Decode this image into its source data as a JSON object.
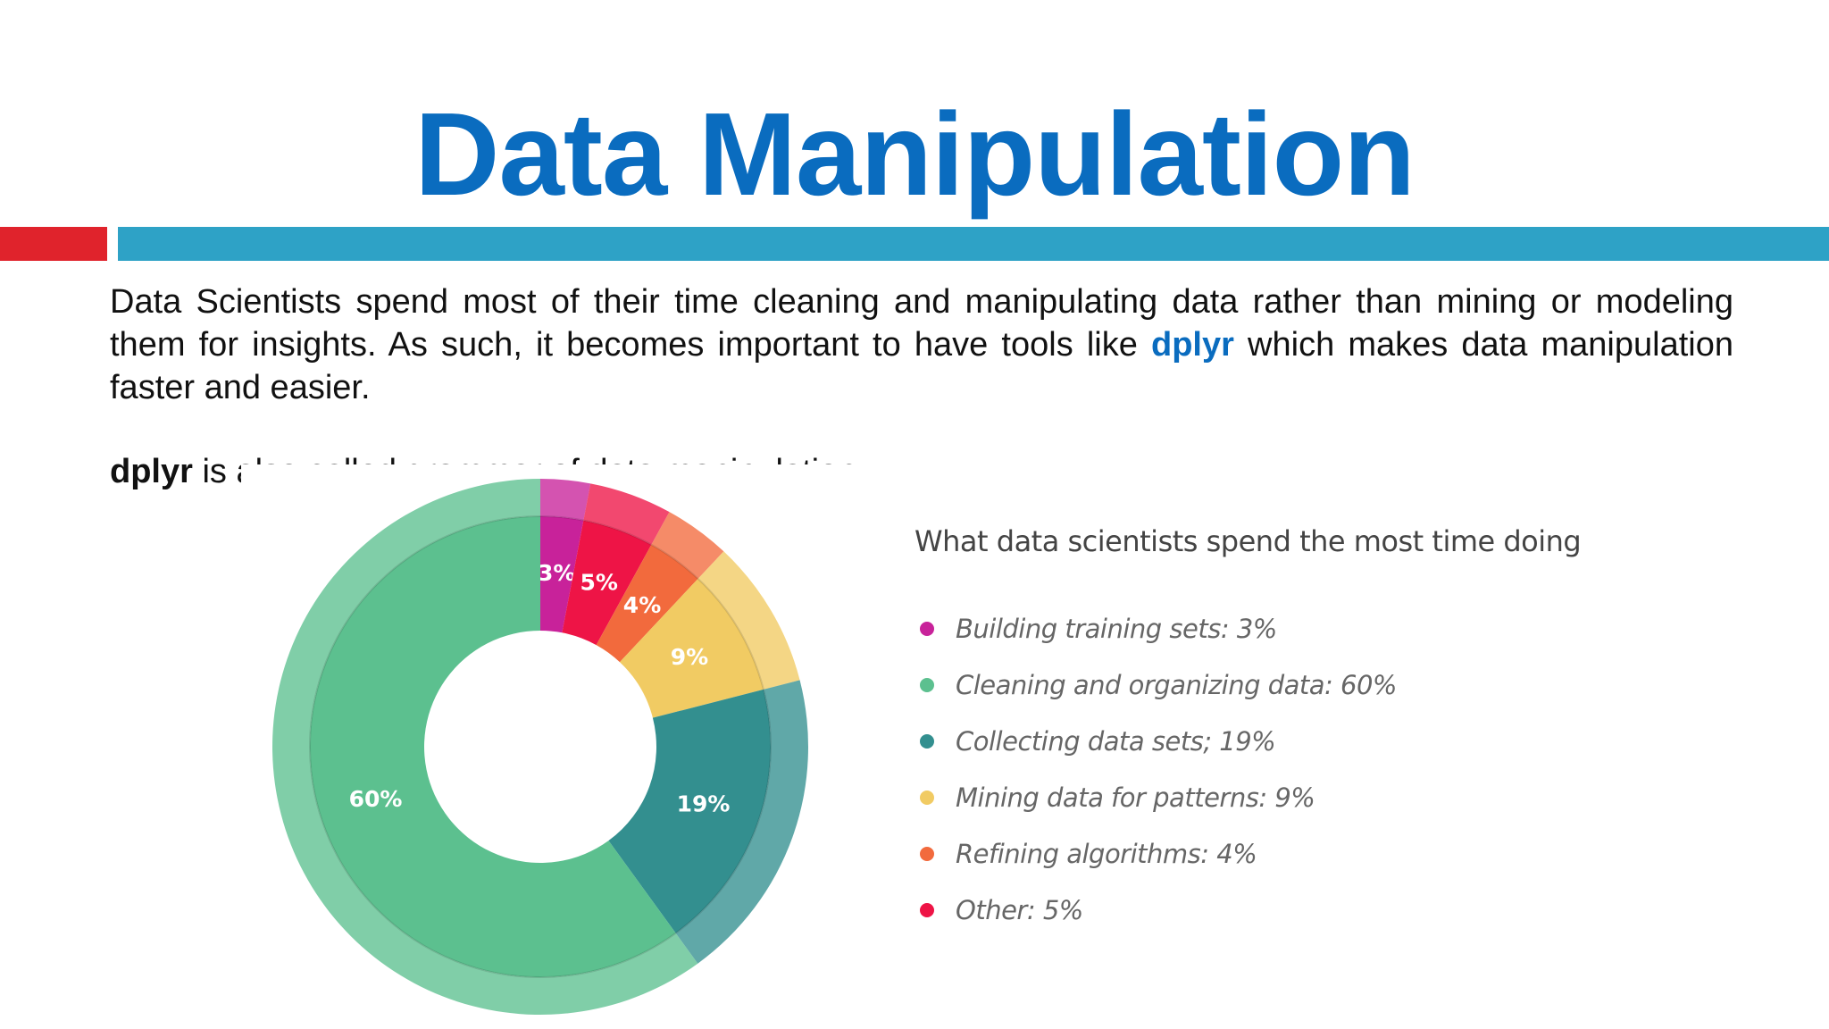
{
  "slide": {
    "title": "Data Manipulation",
    "para1": {
      "text_before": "Data Scientists spend most of their time cleaning and manipulating data rather than mining or modeling them for insights. As such, it becomes important to have tools like ",
      "keyword": "dplyr",
      "text_after": " which makes data manipulation faster and easier."
    },
    "para2": {
      "keyword": "dplyr",
      "text_after": " is also called grammar of data manipulation."
    },
    "accent_colors": {
      "title": "#0a6cbf",
      "red_bar": "#e0232c",
      "blue_bar": "#2ea2c6"
    }
  },
  "chart_data": {
    "type": "pie",
    "donut": true,
    "title": "What data scientists spend the most time doing",
    "legend_position": "right",
    "categories": [
      "Building training sets",
      "Other",
      "Refining algorithms",
      "Mining data for patterns",
      "Collecting data sets",
      "Cleaning and organizing data"
    ],
    "values": [
      3,
      5,
      4,
      9,
      19,
      60
    ],
    "slice_labels": [
      "3%",
      "5%",
      "4%",
      "9%",
      "19%",
      "60%"
    ],
    "colors": [
      "#c8229a",
      "#ee1446",
      "#f26a3d",
      "#f1cb63",
      "#338f8f",
      "#5cc08f"
    ],
    "legend": [
      {
        "label": "Building training sets: 3%",
        "color": "#c8229a"
      },
      {
        "label": "Cleaning and organizing data: 60%",
        "color": "#5cc08f"
      },
      {
        "label": "Collecting data sets; 19%",
        "color": "#338f8f"
      },
      {
        "label": "Mining data for patterns: 9%",
        "color": "#f1cb63"
      },
      {
        "label": "Refining algorithms: 4%",
        "color": "#f26a3d"
      },
      {
        "label": "Other: 5%",
        "color": "#ee1446"
      }
    ]
  }
}
